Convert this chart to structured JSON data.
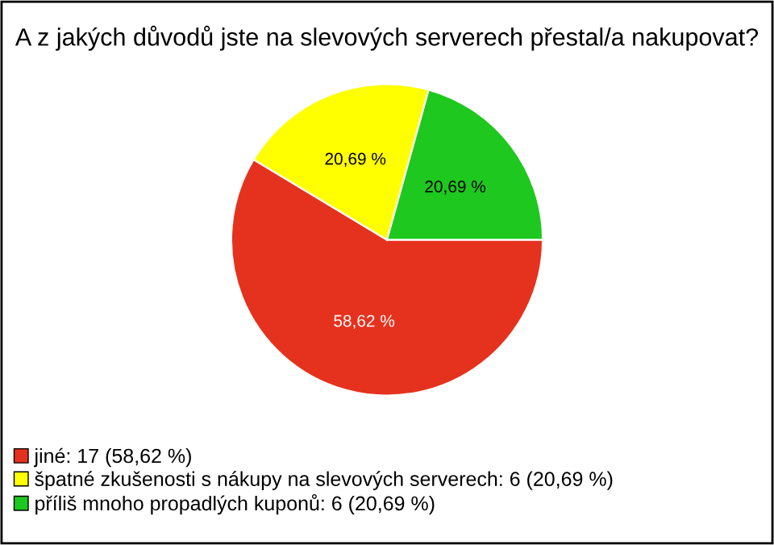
{
  "chart_data": {
    "type": "pie",
    "title": "A z jakých důvodů jste na slevových serverech přestal/a nakupovat?",
    "categories": [
      "jiné: 17 (58,62 %)",
      "špatné zkušenosti s nákupy na slevových serverech: 6 (20,69 %)",
      "příliš mnoho propadlých kuponů: 6 (20,69 %)"
    ],
    "values": [
      58.62,
      20.69,
      20.69
    ],
    "value_labels": [
      "58,62 %",
      "20,69 %",
      "20,69 %"
    ],
    "colors": [
      "#e5321e",
      "#ffff00",
      "#1ec81e"
    ],
    "legend": "bottom left"
  }
}
